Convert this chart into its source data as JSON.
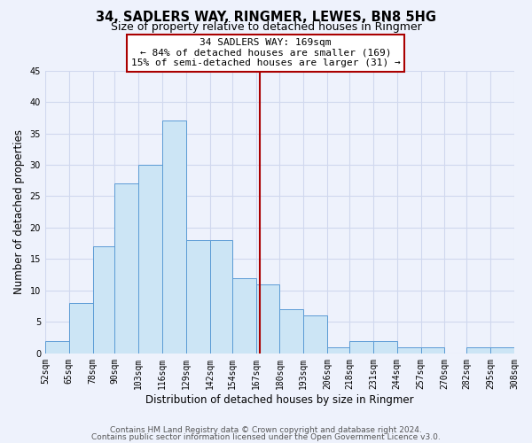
{
  "title": "34, SADLERS WAY, RINGMER, LEWES, BN8 5HG",
  "subtitle": "Size of property relative to detached houses in Ringmer",
  "xlabel": "Distribution of detached houses by size in Ringmer",
  "ylabel": "Number of detached properties",
  "bin_edges": [
    52,
    65,
    78,
    90,
    103,
    116,
    129,
    142,
    154,
    167,
    180,
    193,
    206,
    218,
    231,
    244,
    257,
    270,
    282,
    295,
    308
  ],
  "bin_labels": [
    "52sqm",
    "65sqm",
    "78sqm",
    "90sqm",
    "103sqm",
    "116sqm",
    "129sqm",
    "142sqm",
    "154sqm",
    "167sqm",
    "180sqm",
    "193sqm",
    "206sqm",
    "218sqm",
    "231sqm",
    "244sqm",
    "257sqm",
    "270sqm",
    "282sqm",
    "295sqm",
    "308sqm"
  ],
  "counts": [
    2,
    8,
    17,
    27,
    30,
    37,
    18,
    18,
    12,
    11,
    7,
    6,
    1,
    2,
    2,
    1,
    1,
    0,
    1,
    1
  ],
  "bar_color": "#cce5f5",
  "bar_edge_color": "#5b9bd5",
  "property_size": 169,
  "vline_color": "#aa0000",
  "annotation_line1": "34 SADLERS WAY: 169sqm",
  "annotation_line2": "← 84% of detached houses are smaller (169)",
  "annotation_line3": "15% of semi-detached houses are larger (31) →",
  "annotation_box_color": "#ffffff",
  "annotation_box_edge": "#aa0000",
  "ylim": [
    0,
    45
  ],
  "yticks": [
    0,
    5,
    10,
    15,
    20,
    25,
    30,
    35,
    40,
    45
  ],
  "footer_line1": "Contains HM Land Registry data © Crown copyright and database right 2024.",
  "footer_line2": "Contains public sector information licensed under the Open Government Licence v3.0.",
  "bg_color": "#eef2fc",
  "grid_color": "#d0d8ee",
  "title_fontsize": 10.5,
  "subtitle_fontsize": 9,
  "axis_label_fontsize": 8.5,
  "tick_fontsize": 7,
  "annotation_fontsize": 8,
  "footer_fontsize": 6.5
}
